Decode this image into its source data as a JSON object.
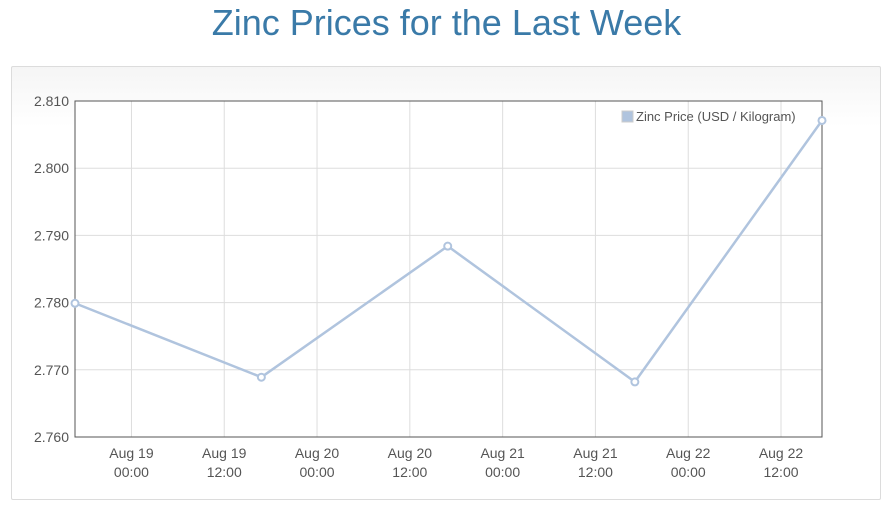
{
  "chart_data": {
    "type": "line",
    "title": "Zinc Prices for the Last Week",
    "legend": {
      "label": "Zinc Price (USD / Kilogram)",
      "position": "top-right"
    },
    "x_ticks": [
      {
        "t": 0,
        "line1": "Aug 19",
        "line2": "00:00"
      },
      {
        "t": 12,
        "line1": "Aug 19",
        "line2": "12:00"
      },
      {
        "t": 24,
        "line1": "Aug 20",
        "line2": "00:00"
      },
      {
        "t": 36,
        "line1": "Aug 20",
        "line2": "12:00"
      },
      {
        "t": 48,
        "line1": "Aug 21",
        "line2": "00:00"
      },
      {
        "t": 60,
        "line1": "Aug 21",
        "line2": "12:00"
      },
      {
        "t": 72,
        "line1": "Aug 22",
        "line2": "00:00"
      },
      {
        "t": 84,
        "line1": "Aug 22",
        "line2": "12:00"
      }
    ],
    "xlim": [
      -7.3,
      89.3
    ],
    "ylim": [
      2.76,
      2.81
    ],
    "y_ticks": [
      "2.810",
      "2.800",
      "2.790",
      "2.780",
      "2.770",
      "2.760"
    ],
    "series": [
      {
        "name": "Zinc Price (USD / Kilogram)",
        "color": "#b0c4de",
        "points": [
          {
            "t": -7.3,
            "y": 2.7799
          },
          {
            "t": 16.8,
            "y": 2.7689
          },
          {
            "t": 40.9,
            "y": 2.7884
          },
          {
            "t": 65.1,
            "y": 2.7682
          },
          {
            "t": 89.3,
            "y": 2.8071
          }
        ]
      }
    ],
    "grid": true
  }
}
